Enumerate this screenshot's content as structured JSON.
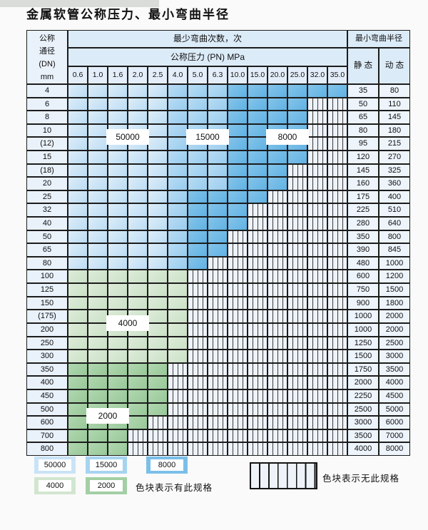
{
  "title": "金属软管公称压力、最小弯曲半径",
  "table": {
    "header": {
      "dn_lines": [
        "公称",
        "通径",
        "(DN)",
        "mm"
      ],
      "cycles": "最少弯曲次数，次",
      "pressure": "公称压力 (PN) MPa",
      "pressures": [
        "0.6",
        "1.0",
        "1.6",
        "2.0",
        "2.5",
        "4.0",
        "5.0",
        "6.3",
        "10.0",
        "15.0",
        "20.0",
        "25.0",
        "32.0",
        "35.0"
      ],
      "radius": "最小弯曲半径",
      "static": "静 态",
      "dynamic": "动 态"
    },
    "rows": [
      {
        "dn": "4",
        "static": "35",
        "dynamic": "80",
        "shades": "LLLLLMMMDDDDDD"
      },
      {
        "dn": "6",
        "static": "50",
        "dynamic": "110",
        "shades": "LLLLLMMMDDDD"
      },
      {
        "dn": "8",
        "static": "65",
        "dynamic": "145",
        "shades": "LLLLLMMMDDDD"
      },
      {
        "dn": "10",
        "static": "80",
        "dynamic": "180",
        "shades": "LLLLLMMMDDDD"
      },
      {
        "dn": "(12)",
        "static": "95",
        "dynamic": "215",
        "shades": "LLLLLMMMDDDD"
      },
      {
        "dn": "15",
        "static": "120",
        "dynamic": "270",
        "shades": "LLLLLMMMDDDD"
      },
      {
        "dn": "(18)",
        "static": "145",
        "dynamic": "325",
        "shades": "LLLLLMMMDDD"
      },
      {
        "dn": "20",
        "static": "160",
        "dynamic": "360",
        "shades": "LLLLLMMMDDD"
      },
      {
        "dn": "25",
        "static": "175",
        "dynamic": "400",
        "shades": "LLLLLMDDDD"
      },
      {
        "dn": "32",
        "static": "225",
        "dynamic": "510",
        "shades": "LLLLLMDDD"
      },
      {
        "dn": "40",
        "static": "280",
        "dynamic": "640",
        "shades": "LLLLLMDDD"
      },
      {
        "dn": "50",
        "static": "350",
        "dynamic": "800",
        "shades": "LLLLLMDD"
      },
      {
        "dn": "65",
        "static": "390",
        "dynamic": "845",
        "shades": "LLLLLMDD"
      },
      {
        "dn": "80",
        "static": "480",
        "dynamic": "1000",
        "shades": "LLLLLMD"
      },
      {
        "dn": "100",
        "static": "600",
        "dynamic": "1200",
        "shades": "GGGGGG"
      },
      {
        "dn": "125",
        "static": "750",
        "dynamic": "1500",
        "shades": "GGGGGG"
      },
      {
        "dn": "150",
        "static": "900",
        "dynamic": "1800",
        "shades": "GGGGGG"
      },
      {
        "dn": "(175)",
        "static": "1000",
        "dynamic": "2000",
        "shades": "GGGGGG"
      },
      {
        "dn": "200",
        "static": "1000",
        "dynamic": "2000",
        "shades": "GGGGGG"
      },
      {
        "dn": "250",
        "static": "1250",
        "dynamic": "2500",
        "shades": "GGGGGG"
      },
      {
        "dn": "300",
        "static": "1500",
        "dynamic": "3000",
        "shades": "GGGGGG"
      },
      {
        "dn": "350",
        "static": "1750",
        "dynamic": "3500",
        "shades": "HHHHH"
      },
      {
        "dn": "400",
        "static": "2000",
        "dynamic": "4000",
        "shades": "HHHHH"
      },
      {
        "dn": "450",
        "static": "2250",
        "dynamic": "4500",
        "shades": "HHHHH"
      },
      {
        "dn": "500",
        "static": "2500",
        "dynamic": "5000",
        "shades": "HHHHH"
      },
      {
        "dn": "600",
        "static": "3000",
        "dynamic": "6000",
        "shades": "HHHH"
      },
      {
        "dn": "700",
        "static": "3500",
        "dynamic": "7000",
        "shades": "HHH"
      },
      {
        "dn": "800",
        "static": "4000",
        "dynamic": "8000",
        "shades": "HHH"
      }
    ],
    "cycle_labels": [
      {
        "label": "50000",
        "col_start": 2,
        "col_end": 3,
        "row_boundary": 4
      },
      {
        "label": "15000",
        "col_start": 6,
        "col_end": 7,
        "row_boundary": 4
      },
      {
        "label": "8000",
        "col_start": 10,
        "col_end": 11,
        "row_boundary": 4
      },
      {
        "label": "4000",
        "col_start": 2,
        "col_end": 3,
        "row_boundary": 18
      },
      {
        "label": "2000",
        "col_start": 1,
        "col_end": 2,
        "row_boundary": 25
      }
    ]
  },
  "legend": {
    "swatches": [
      {
        "label": "50000",
        "zone": "L"
      },
      {
        "label": "15000",
        "zone": "M"
      },
      {
        "label": "8000",
        "zone": "D"
      },
      {
        "label": "4000",
        "zone": "G"
      },
      {
        "label": "2000",
        "zone": "H"
      }
    ],
    "has_spec_text": "色块表示有此规格",
    "no_spec_text": "色块表示无此规格"
  },
  "colors": {
    "zones": {
      "L": [
        "#dcedf9",
        "#bcdcf3"
      ],
      "M": [
        "#b8dcf4",
        "#98ccee"
      ],
      "D": [
        "#84c4ea",
        "#60b2e3"
      ],
      "G": [
        "#dcebd8",
        "#cbe1c7"
      ],
      "H": [
        "#b0d7af",
        "#98c899"
      ]
    },
    "swatch": {
      "L": "#c9e3f6",
      "M": "#a6d4f0",
      "D": "#7bbfe9",
      "G": "#d2e6cf",
      "H": "#a3cfa4"
    },
    "hatch_bg": "#eef3fa",
    "hatch_line": "#3c3c3c",
    "header_bg": "#dcebf8",
    "tick_bg": "#e4eefa",
    "dn_bg": "#e9f1fb",
    "radius_bg": "#edf4fc",
    "border": "#1c1c1c",
    "top_band": "#d9dcd9"
  }
}
